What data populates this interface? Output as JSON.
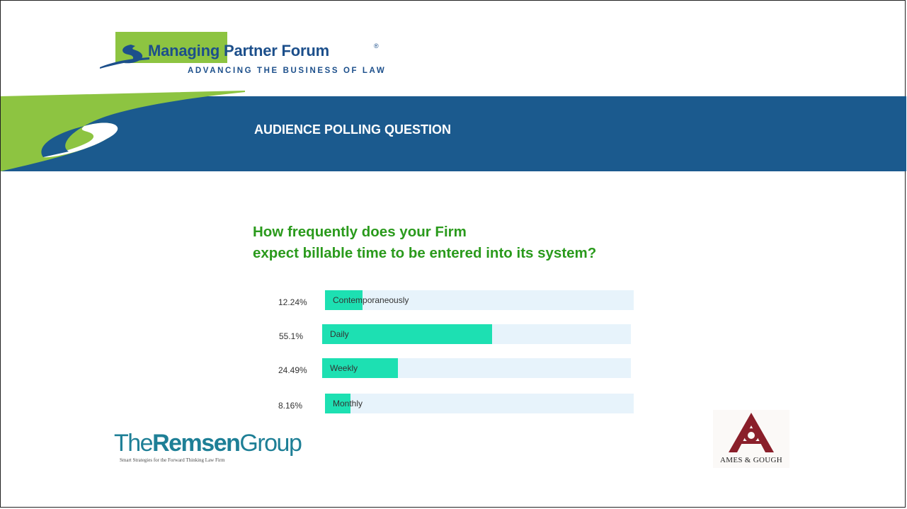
{
  "logo": {
    "name": "Managing Partner Forum",
    "registered": "®",
    "tagline": "ADVANCING THE BUSINESS OF LAW"
  },
  "banner": {
    "title": "AUDIENCE POLLING QUESTION",
    "color": "#1b5a8e",
    "accent": "#8dc441"
  },
  "question": {
    "line1": "How frequently does your Firm",
    "line2": "expect billable time to be entered into its system?"
  },
  "chart_data": {
    "type": "bar",
    "orientation": "horizontal",
    "categories": [
      "Contemporaneously",
      "Daily",
      "Weekly",
      "Monthly"
    ],
    "values": [
      12.24,
      55.1,
      24.49,
      8.16
    ],
    "value_labels": [
      "12.24%",
      "55.1%",
      "24.49%",
      "8.16%"
    ],
    "xlim": [
      0,
      100
    ],
    "bar_color": "#1de0b2",
    "track_color": "#e7f3fb"
  },
  "sponsors": {
    "remsen": {
      "pre": "The",
      "bold": "Remsen",
      "post": "Group",
      "tagline": "Smart Strategies for the Forward Thinking Law Firm"
    },
    "ames": {
      "name": "AMES & GOUGH"
    }
  }
}
